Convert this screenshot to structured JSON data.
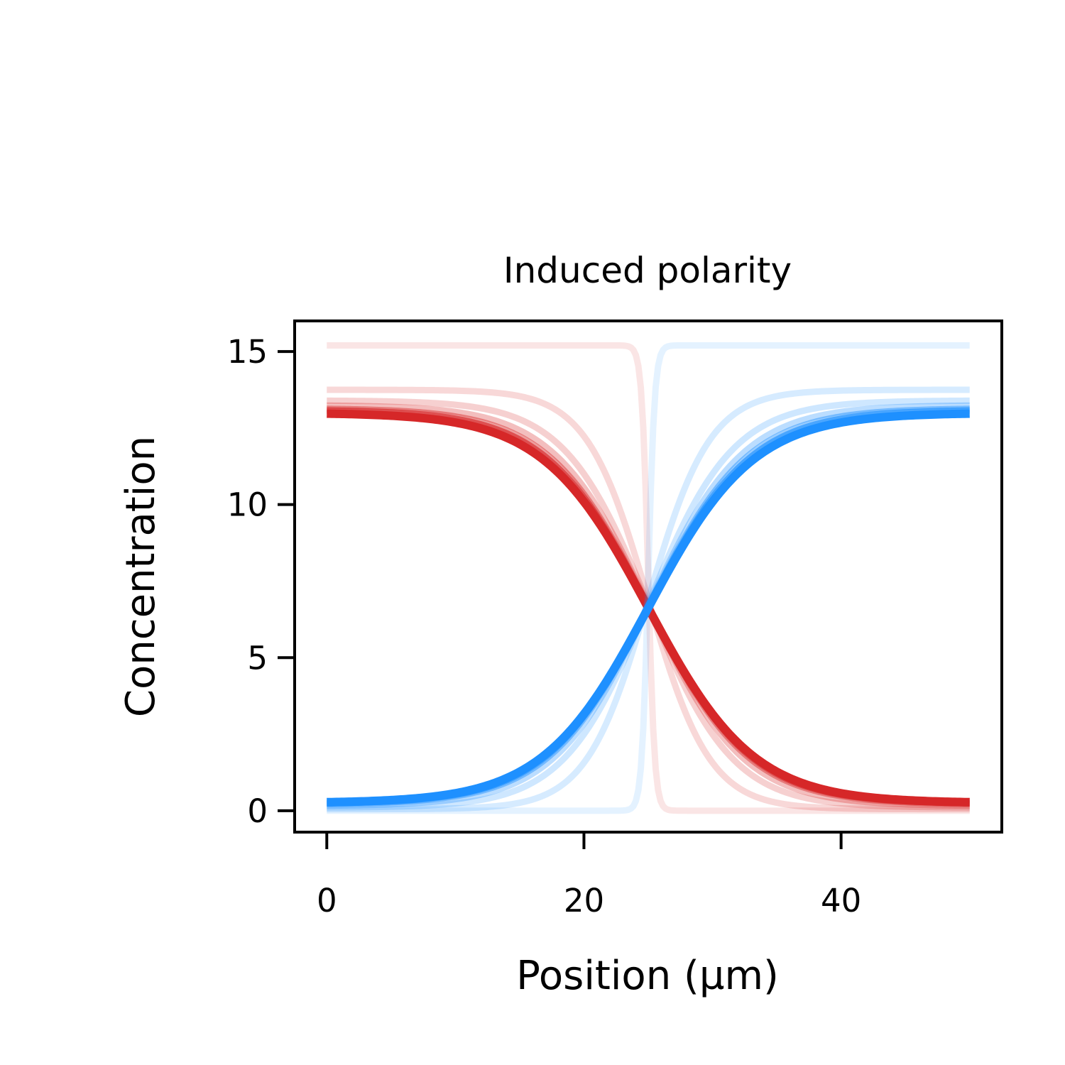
{
  "chart_data": {
    "type": "line",
    "title": "Induced polarity",
    "xlabel": "Position (µm)",
    "ylabel": "Concentration",
    "xlim": [
      -2.5,
      52.5
    ],
    "ylim": [
      -0.7,
      16.0
    ],
    "xticks": [
      0,
      20,
      40
    ],
    "yticks": [
      0,
      5,
      10,
      15
    ],
    "xtick_labels": [
      "0",
      "20",
      "40"
    ],
    "ytick_labels": [
      "0",
      "5",
      "10",
      "15"
    ],
    "grid": false,
    "legend": "none",
    "x_range": [
      0,
      50
    ],
    "crossing_x": 25,
    "colors": {
      "red": "#d62728",
      "blue": "#1e90ff"
    },
    "series": [
      {
        "color": "red",
        "opacity": 0.12,
        "high": 15.2,
        "low": 0.0,
        "width": 0.25
      },
      {
        "color": "red",
        "opacity": 0.18,
        "high": 13.75,
        "low": 0.05,
        "width": 2.4
      },
      {
        "color": "red",
        "opacity": 0.22,
        "high": 13.4,
        "low": 0.1,
        "width": 3.3
      },
      {
        "color": "red",
        "opacity": 0.3,
        "high": 13.25,
        "low": 0.15,
        "width": 3.7
      },
      {
        "color": "red",
        "opacity": 0.45,
        "high": 13.15,
        "low": 0.2,
        "width": 3.9
      },
      {
        "color": "red",
        "opacity": 0.65,
        "high": 13.1,
        "low": 0.22,
        "width": 4.0
      },
      {
        "color": "red",
        "opacity": 1.0,
        "high": 13.0,
        "low": 0.25,
        "width": 4.1
      },
      {
        "color": "blue",
        "opacity": 0.12,
        "high": 15.2,
        "low": 0.0,
        "width": 0.25
      },
      {
        "color": "blue",
        "opacity": 0.18,
        "high": 13.75,
        "low": 0.05,
        "width": 2.4
      },
      {
        "color": "blue",
        "opacity": 0.22,
        "high": 13.4,
        "low": 0.1,
        "width": 3.3
      },
      {
        "color": "blue",
        "opacity": 0.3,
        "high": 13.25,
        "low": 0.15,
        "width": 3.7
      },
      {
        "color": "blue",
        "opacity": 0.45,
        "high": 13.15,
        "low": 0.2,
        "width": 3.9
      },
      {
        "color": "blue",
        "opacity": 0.65,
        "high": 13.1,
        "low": 0.22,
        "width": 4.0
      },
      {
        "color": "blue",
        "opacity": 1.0,
        "high": 13.0,
        "low": 0.25,
        "width": 4.1
      }
    ]
  }
}
